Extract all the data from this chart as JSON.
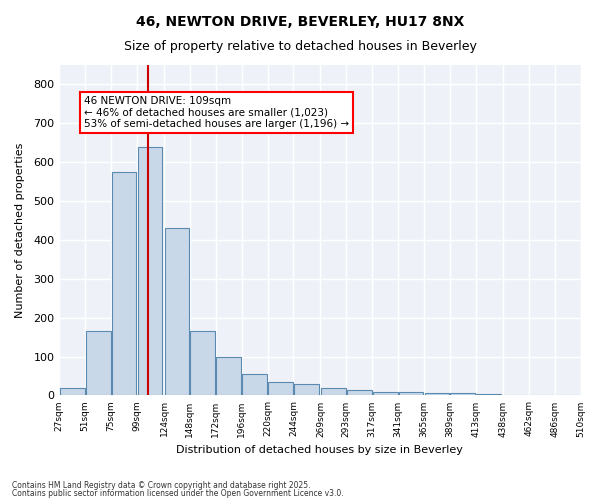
{
  "title1": "46, NEWTON DRIVE, BEVERLEY, HU17 8NX",
  "title2": "Size of property relative to detached houses in Beverley",
  "xlabel": "Distribution of detached houses by size in Beverley",
  "ylabel": "Number of detached properties",
  "bar_color": "#c8d8e8",
  "bar_edge_color": "#5a8ab0",
  "background_color": "#eef2f8",
  "grid_color": "#ffffff",
  "annotation_text": "46 NEWTON DRIVE: 109sqm\n← 46% of detached houses are smaller (1,023)\n53% of semi-detached houses are larger (1,196) →",
  "vline_x": 109,
  "vline_color": "#cc0000",
  "bins": [
    27,
    51,
    75,
    99,
    124,
    148,
    172,
    196,
    220,
    244,
    269,
    293,
    317,
    341,
    365,
    389,
    413,
    438,
    462,
    486,
    510
  ],
  "values": [
    20,
    165,
    575,
    640,
    430,
    165,
    100,
    55,
    35,
    30,
    20,
    15,
    10,
    10,
    7,
    5,
    3,
    2,
    1,
    1
  ],
  "ylim": [
    0,
    850
  ],
  "yticks": [
    0,
    100,
    200,
    300,
    400,
    500,
    600,
    700,
    800
  ],
  "footnote1": "Contains HM Land Registry data © Crown copyright and database right 2025.",
  "footnote2": "Contains public sector information licensed under the Open Government Licence v3.0."
}
